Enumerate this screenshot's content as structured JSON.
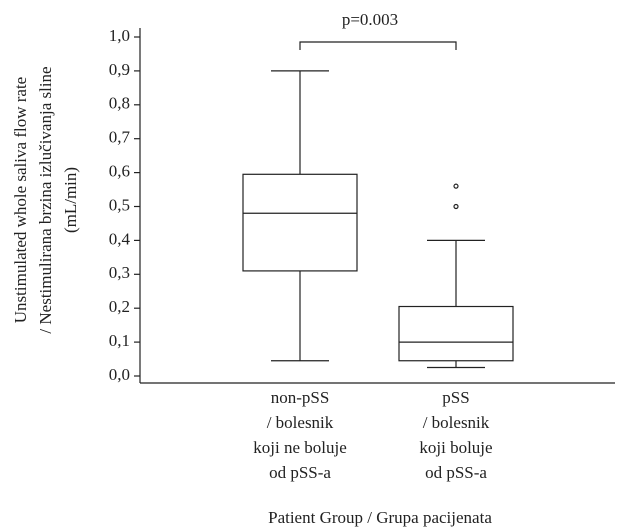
{
  "chart_data": {
    "type": "box",
    "annotation": "p=0.003",
    "ylabel": [
      "Unstimulated whole saliva flow rate",
      "/ Nestimulirana brzina izlučivanja sline",
      "(mL/min)"
    ],
    "xlabel": "Patient Group / Grupa pacijenata",
    "categories": [
      [
        "non-pSS",
        "/ bolesnik",
        "koji ne boluje",
        "od pSS-a"
      ],
      [
        "pSS",
        "/ bolesnik",
        "koji boluje",
        "od pSS-a"
      ]
    ],
    "boxes": [
      {
        "whisker_low": 0.045,
        "q1": 0.31,
        "median": 0.48,
        "q3": 0.595,
        "whisker_high": 0.9
      },
      {
        "whisker_low": 0.025,
        "q1": 0.045,
        "median": 0.1,
        "q3": 0.205,
        "whisker_high": 0.4,
        "outliers": [
          0.56,
          0.5
        ]
      }
    ],
    "ylim": [
      0,
      1
    ],
    "yticks": [
      {
        "value": 0,
        "label": "0,0"
      },
      {
        "value": 0.1,
        "label": "0,1"
      },
      {
        "value": 0.2,
        "label": "0,2"
      },
      {
        "value": 0.3,
        "label": "0,3"
      },
      {
        "value": 0.4,
        "label": "0,4"
      },
      {
        "value": 0.5,
        "label": "0,5"
      },
      {
        "value": 0.6,
        "label": "0,6"
      },
      {
        "value": 0.7,
        "label": "0,7"
      },
      {
        "value": 0.8,
        "label": "0,8"
      },
      {
        "value": 0.9,
        "label": "0,9"
      },
      {
        "value": 1,
        "label": "1,0"
      }
    ],
    "color": "#000000"
  }
}
